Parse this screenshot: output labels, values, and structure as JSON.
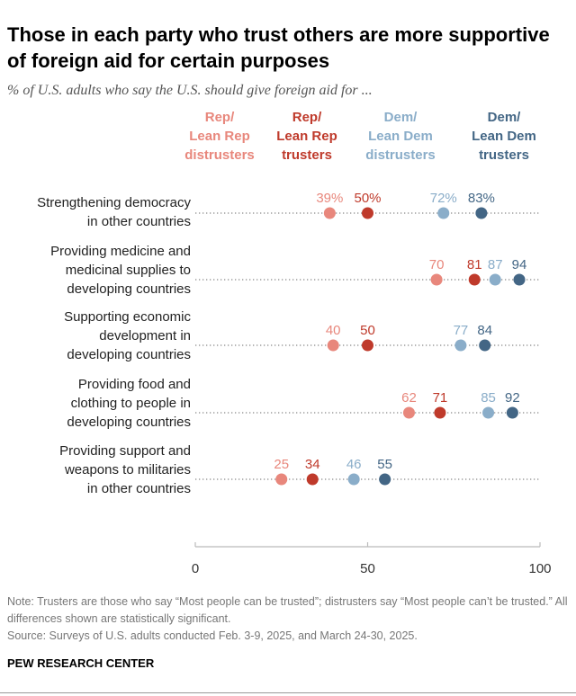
{
  "title": "Those in each party who trust others are more supportive of foreign aid for certain purposes",
  "subtitle": "% of U.S. adults who say the U.S. should give foreign aid for ...",
  "note": "Note: Trusters are those who say “Most people can be trusted”; distrusters say “Most people can’t be trusted.” All differences shown are statistically significant.",
  "source": "Source: Surveys of U.S. adults conducted Feb. 3-9, 2025, and March 24-30, 2025.",
  "brand": "PEW RESEARCH CENTER",
  "chart_data": {
    "type": "dot",
    "xlim": [
      0,
      100
    ],
    "xticks": [
      "0",
      "50",
      "100"
    ],
    "grid": false,
    "legend_placement": "top",
    "series": [
      {
        "name": [
          "Rep/",
          "Lean Rep",
          "distrusters"
        ],
        "color": "#E8877C",
        "values": [
          39,
          70,
          40,
          62,
          25
        ]
      },
      {
        "name": [
          "Rep/",
          "Lean Rep",
          "trusters"
        ],
        "color": "#BF3A2B",
        "values": [
          50,
          81,
          50,
          71,
          34
        ]
      },
      {
        "name": [
          "Dem/",
          "Lean Dem",
          "distrusters"
        ],
        "color": "#8AADC9",
        "values": [
          72,
          87,
          77,
          85,
          46
        ]
      },
      {
        "name": [
          "Dem/",
          "Lean Dem",
          "trusters"
        ],
        "color": "#436685",
        "values": [
          83,
          94,
          84,
          92,
          55
        ]
      }
    ],
    "categories": [
      [
        "Strengthening democracy",
        "in other countries"
      ],
      [
        "Providing medicine and",
        "medicinal supplies to",
        "developing countries"
      ],
      [
        "Supporting economic",
        "development in",
        "developing countries"
      ],
      [
        "Providing food and",
        "clothing to people in",
        "developing countries"
      ],
      [
        "Providing support and",
        "weapons to militaries",
        "in other countries"
      ]
    ],
    "first_row_percent": true
  }
}
